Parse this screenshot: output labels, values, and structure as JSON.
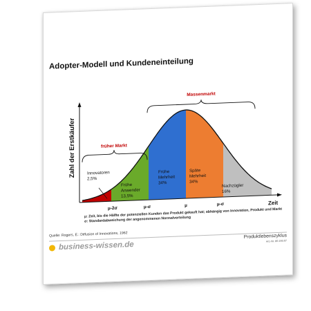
{
  "title": "Adopter-Modell und Kundeneinteilung",
  "y_axis_label": "Zahl der Erstkäufer",
  "x_axis_label": "Zeit",
  "markets": {
    "early": "früher Markt",
    "mass": "Massenmarkt"
  },
  "segments": [
    {
      "line1": "Innovatoren",
      "line2": "2,5%",
      "line3": "",
      "color": "#c00000"
    },
    {
      "line1": "Frühe",
      "line2": "Anwender",
      "line3": "13,5%",
      "color": "#6aaa2a"
    },
    {
      "line1": "Frühe",
      "line2": "Mehrheit",
      "line3": "34%",
      "color": "#2f6fd0"
    },
    {
      "line1": "Späte",
      "line2": "Mehrheit",
      "line3": "34%",
      "color": "#ed7d31"
    },
    {
      "line1": "Nachzügler",
      "line2": "16%",
      "line3": "",
      "color": "#bfbfbf"
    }
  ],
  "x_ticks": [
    "µ-2σ",
    "µ-σ",
    "µ",
    "µ-σ"
  ],
  "notes": {
    "mu": "µ: Zeit, bis die Hälfte der potenziellen Kunden das Produkt gekauft hat; abhängig von Innovation, Produkt und Markt",
    "sigma": "σ: Standardabweichung der angenommenen Normalverteilung"
  },
  "source": "Quelle: Rogers, E.: Diffusion of Innovations, 1962",
  "brand": "business-wissen.de",
  "doc_title": "Produktlebenszyklus",
  "doc_number": "Art.-Nr. 80.193.07",
  "colors": {
    "brand_dot": "#f2b705",
    "market_label": "#c00000"
  }
}
